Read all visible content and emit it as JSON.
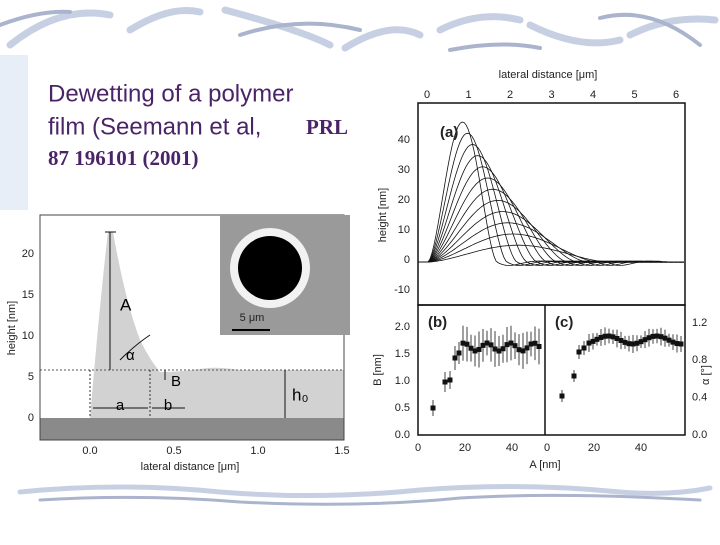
{
  "title": {
    "line1": "Dewetting of a polymer",
    "line2": "film (Seemann et al,",
    "line2_ref": "PRL",
    "line3": "87 196101 (2001)"
  },
  "figure_left": {
    "x_label": "lateral distance [μm]",
    "y_label": "height [nm]",
    "x_ticks": [
      "0.0",
      "0.5",
      "1.0",
      "1.5"
    ],
    "y_ticks": [
      "0",
      "5",
      "10",
      "15",
      "20"
    ],
    "inset_scale": "5 μm",
    "annotations": {
      "A": "A",
      "alpha": "α",
      "B": "B",
      "a": "a",
      "b": "b",
      "h0": "h₀"
    }
  },
  "figure_right": {
    "top_x_label": "lateral distance [μm]",
    "top_x_ticks": [
      "0",
      "1",
      "2",
      "3",
      "4",
      "5",
      "6"
    ],
    "panel_a": "(a)",
    "a_y_label": "height [nm]",
    "a_y_ticks": [
      "40",
      "30",
      "20",
      "10",
      "0",
      "-10"
    ],
    "panel_b": "(b)",
    "panel_c": "(c)",
    "b_y_label": "B [nm]",
    "b_y_ticks": [
      "2.0",
      "1.5",
      "1.0",
      "0.5",
      "0.0"
    ],
    "c_y_label": "α [°]",
    "c_y_ticks": [
      "1.2",
      "0.8",
      "0.4",
      "0.0"
    ],
    "bottom_x_label": "A [nm]",
    "b_x_ticks": [
      "0",
      "20",
      "40"
    ],
    "c_x_ticks": [
      "0",
      "20",
      "40"
    ]
  }
}
